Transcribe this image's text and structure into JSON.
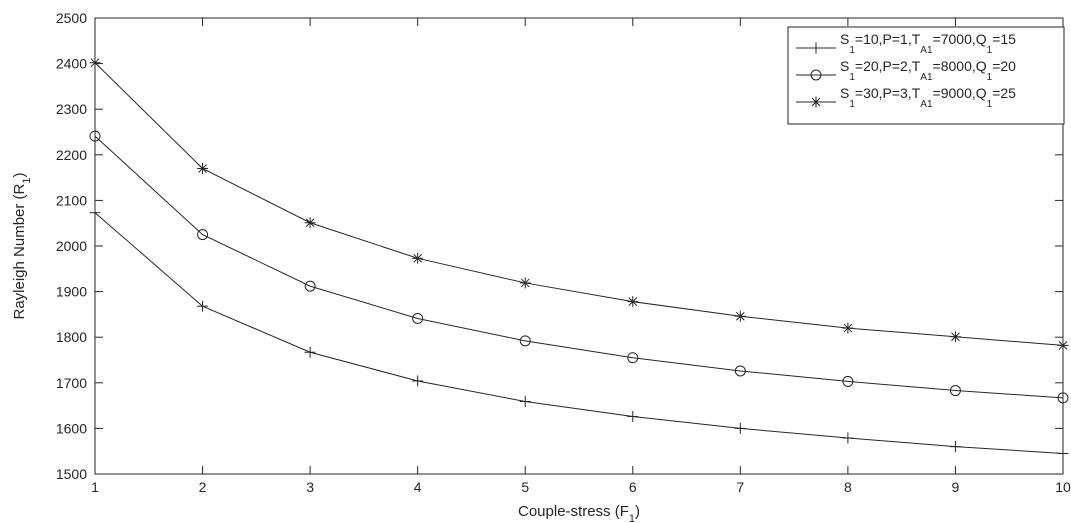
{
  "chart_data": {
    "type": "line",
    "title": "",
    "xlabel": {
      "main": "Couple-stress (F",
      "sub": "1",
      "close": ")"
    },
    "ylabel": {
      "main": "Rayleigh Number (R",
      "sub": "1",
      "close": ")"
    },
    "xlim": [
      1,
      10
    ],
    "ylim": [
      1500,
      2500
    ],
    "xticks": [
      1,
      2,
      3,
      4,
      5,
      6,
      7,
      8,
      9,
      10
    ],
    "yticks": [
      1500,
      1600,
      1700,
      1800,
      1900,
      2000,
      2100,
      2200,
      2300,
      2400,
      2500
    ],
    "grid": false,
    "legend_position": "top-right",
    "x": [
      1,
      2,
      3,
      4,
      5,
      6,
      7,
      8,
      9,
      10
    ],
    "series": [
      {
        "marker": "plus",
        "legend": [
          "S",
          "1",
          "=10,P=1,T",
          "A1",
          "=7000,Q",
          "1",
          "=15"
        ],
        "values": [
          2073,
          1868,
          1767,
          1704,
          1659,
          1626,
          1600,
          1579,
          1560,
          1545
        ]
      },
      {
        "marker": "circle",
        "legend": [
          "S",
          "1",
          "=20,P=2,T",
          "A1",
          "=8000,Q",
          "1",
          "=20"
        ],
        "values": [
          2241,
          2025,
          1912,
          1841,
          1792,
          1755,
          1726,
          1703,
          1683,
          1667
        ]
      },
      {
        "marker": "asterisk",
        "legend": [
          "S",
          "1",
          "=30,P=3,T",
          "A1",
          "=9000,Q",
          "1",
          "=25"
        ],
        "values": [
          2402,
          2170,
          2051,
          1973,
          1919,
          1878,
          1846,
          1820,
          1801,
          1782
        ]
      }
    ]
  }
}
